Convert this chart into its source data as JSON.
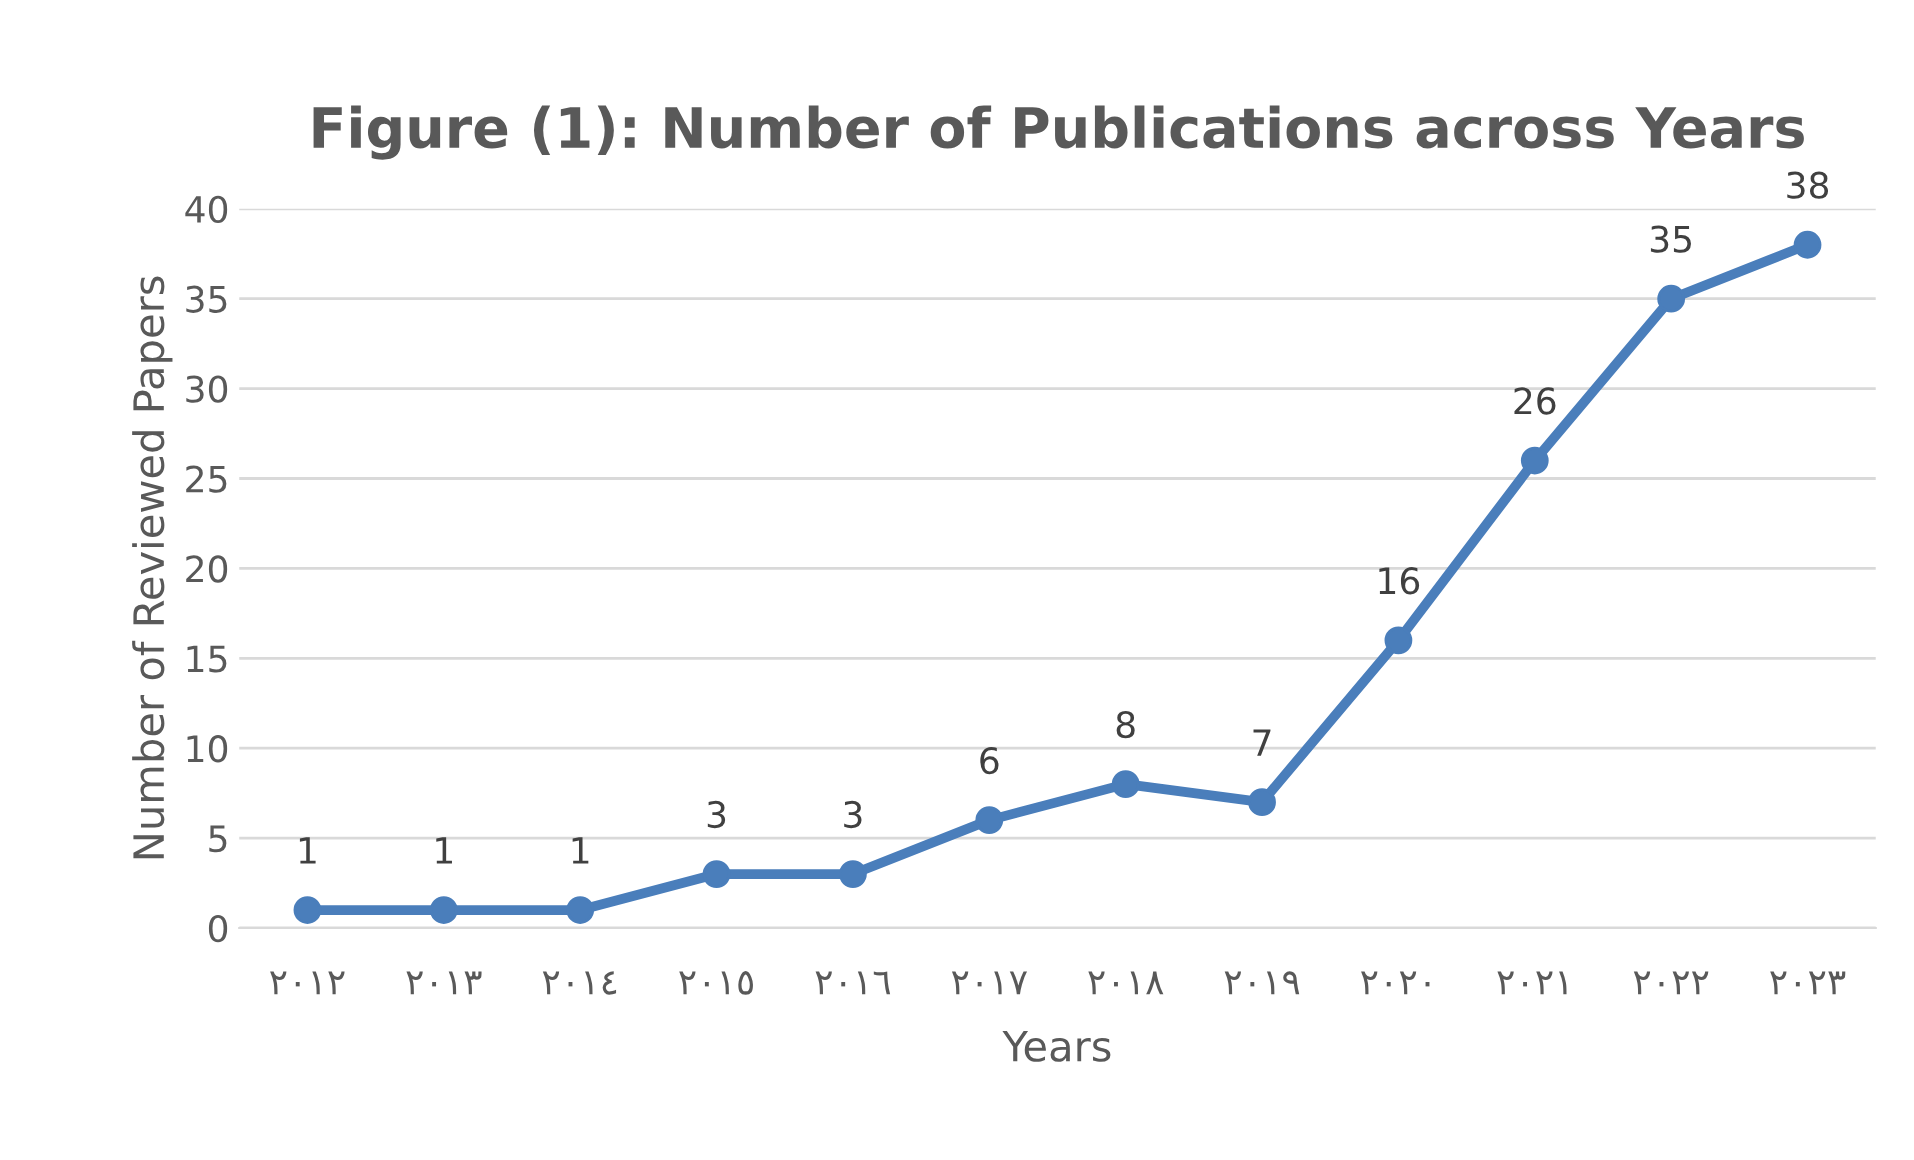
{
  "chart_data": {
    "type": "line",
    "title": "Figure (1): Number of Publications across Years",
    "xlabel": "Years",
    "ylabel": "Number of Reviewed Papers",
    "categories": [
      "٢٠١٢",
      "٢٠١٣",
      "٢٠١٤",
      "٢٠١٥",
      "٢٠١٦",
      "٢٠١٧",
      "٢٠١٨",
      "٢٠١٩",
      "٢٠٢٠",
      "٢٠٢١",
      "٢٠٢٢",
      "٢٠٢٣"
    ],
    "series": [
      {
        "color": "#4a7ebb",
        "values": [
          1,
          1,
          1,
          3,
          3,
          6,
          8,
          7,
          16,
          26,
          35,
          38
        ]
      }
    ],
    "ylim": [
      0,
      40
    ],
    "yticks": [
      0,
      5,
      10,
      15,
      20,
      25,
      30,
      35,
      40
    ],
    "grid": "y",
    "data_labels": true,
    "marker": "circle",
    "line_style": "solid"
  }
}
